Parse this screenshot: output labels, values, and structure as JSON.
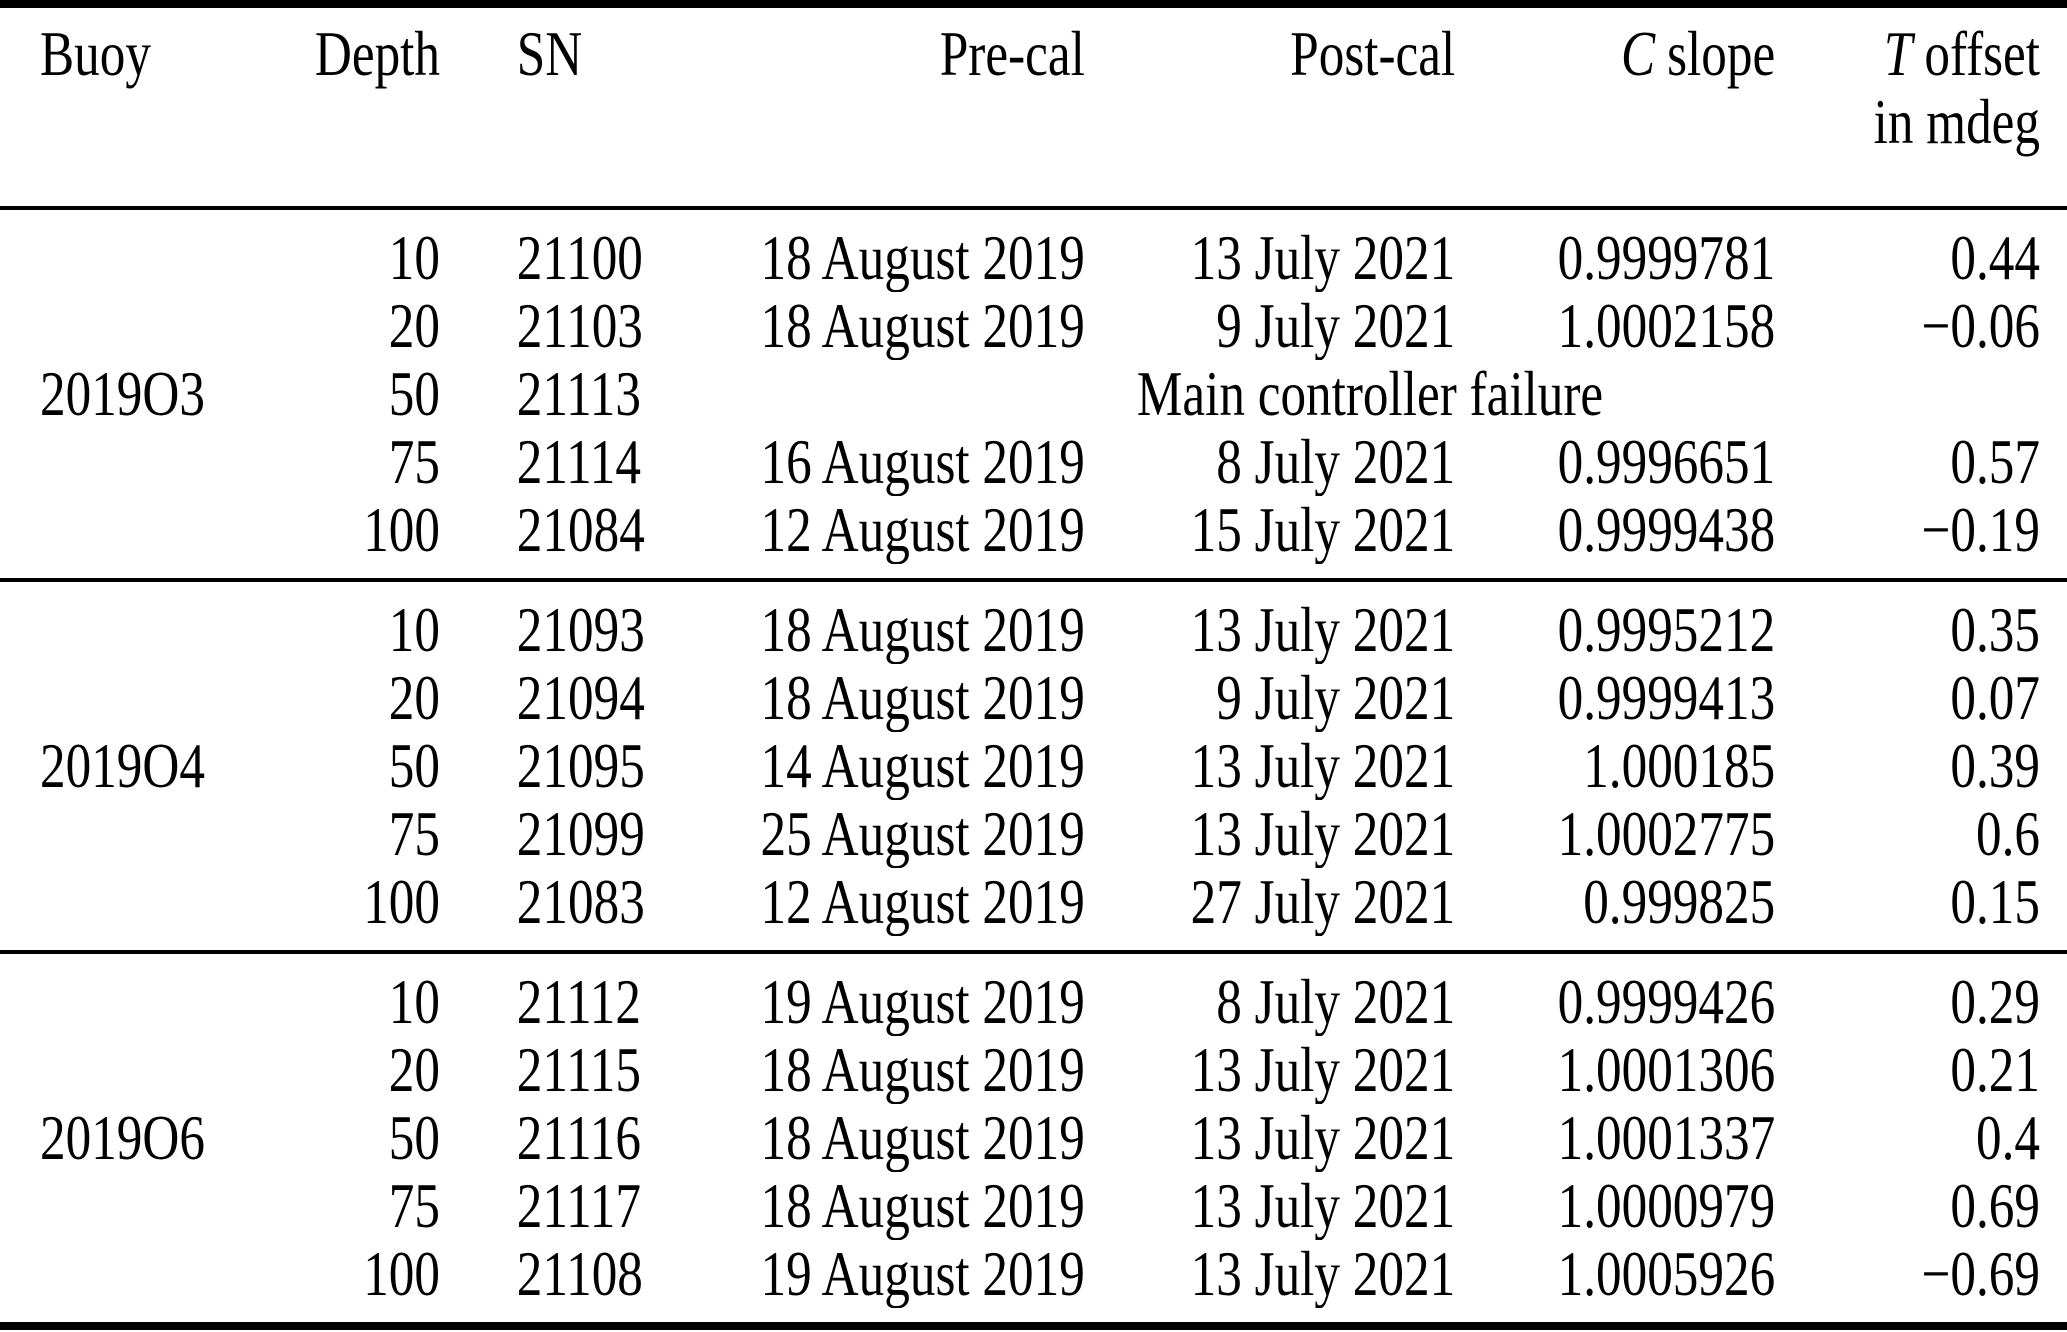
{
  "table": {
    "headers": {
      "buoy": "Buoy",
      "depth": "Depth",
      "sn": "SN",
      "precal": "Pre-cal",
      "postcal": "Post-cal",
      "cslope": {
        "italic": "C",
        "rest": "slope"
      },
      "toffset": {
        "italic": "T",
        "rest": "offset",
        "line2": "in mdeg"
      }
    },
    "groups": [
      {
        "buoy": "2019O3",
        "rows": [
          {
            "depth": "10",
            "sn": "21100",
            "precal": "18 August 2019",
            "postcal": "13 July 2021",
            "cslope": "0.9999781",
            "toffset": "0.44"
          },
          {
            "depth": "20",
            "sn": "21103",
            "precal": "18 August 2019",
            "postcal": "9 July 2021",
            "cslope": "1.0002158",
            "toffset": "−0.06"
          },
          {
            "depth": "50",
            "sn": "21113",
            "note": "Main controller failure"
          },
          {
            "depth": "75",
            "sn": "21114",
            "precal": "16 August 2019",
            "postcal": "8 July 2021",
            "cslope": "0.9996651",
            "toffset": "0.57"
          },
          {
            "depth": "100",
            "sn": "21084",
            "precal": "12 August 2019",
            "postcal": "15 July 2021",
            "cslope": "0.9999438",
            "toffset": "−0.19"
          }
        ]
      },
      {
        "buoy": "2019O4",
        "rows": [
          {
            "depth": "10",
            "sn": "21093",
            "precal": "18 August 2019",
            "postcal": "13 July 2021",
            "cslope": "0.9995212",
            "toffset": "0.35"
          },
          {
            "depth": "20",
            "sn": "21094",
            "precal": "18 August 2019",
            "postcal": "9 July 2021",
            "cslope": "0.9999413",
            "toffset": "0.07"
          },
          {
            "depth": "50",
            "sn": "21095",
            "precal": "14 August 2019",
            "postcal": "13 July 2021",
            "cslope": "1.000185",
            "toffset": "0.39"
          },
          {
            "depth": "75",
            "sn": "21099",
            "precal": "25 August 2019",
            "postcal": "13 July 2021",
            "cslope": "1.0002775",
            "toffset": "0.6"
          },
          {
            "depth": "100",
            "sn": "21083",
            "precal": "12 August 2019",
            "postcal": "27 July 2021",
            "cslope": "0.999825",
            "toffset": "0.15"
          }
        ]
      },
      {
        "buoy": "2019O6",
        "rows": [
          {
            "depth": "10",
            "sn": "21112",
            "precal": "19 August 2019",
            "postcal": "8 July 2021",
            "cslope": "0.9999426",
            "toffset": "0.29"
          },
          {
            "depth": "20",
            "sn": "21115",
            "precal": "18 August 2019",
            "postcal": "13 July 2021",
            "cslope": "1.0001306",
            "toffset": "0.21"
          },
          {
            "depth": "50",
            "sn": "21116",
            "precal": "18 August 2019",
            "postcal": "13 July 2021",
            "cslope": "1.0001337",
            "toffset": "0.4"
          },
          {
            "depth": "75",
            "sn": "21117",
            "precal": "18 August 2019",
            "postcal": "13 July 2021",
            "cslope": "1.0000979",
            "toffset": "0.69"
          },
          {
            "depth": "100",
            "sn": "21108",
            "precal": "19 August 2019",
            "postcal": "13 July 2021",
            "cslope": "1.0005926",
            "toffset": "−0.69"
          }
        ]
      }
    ]
  }
}
